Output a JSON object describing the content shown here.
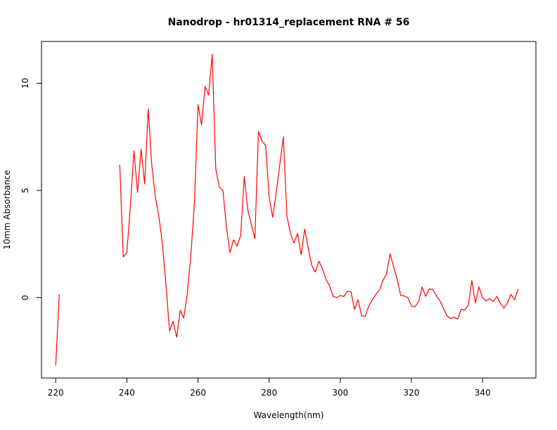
{
  "chart_data": {
    "type": "line",
    "title": "Nanodrop - hr01314_replacement RNA # 56",
    "xlabel": "Wavelength(nm)",
    "ylabel": "10mm Absorbance",
    "xlim": [
      216,
      355
    ],
    "ylim": [
      -3.75,
      11.95
    ],
    "xticks": [
      220,
      240,
      260,
      280,
      300,
      320,
      340
    ],
    "yticks": [
      0,
      5,
      10
    ],
    "grid": false,
    "legend": "none",
    "series": [
      {
        "color": "#ff0000",
        "segments": [
          [
            [
              220,
              -3.15
            ],
            [
              221,
              0.15
            ]
          ],
          [
            [
              238,
              6.2
            ],
            [
              239,
              1.9
            ],
            [
              240,
              2.1
            ],
            [
              241,
              4.3
            ],
            [
              242,
              6.85
            ],
            [
              243,
              4.9
            ],
            [
              244,
              6.92
            ],
            [
              245,
              5.3
            ],
            [
              246,
              8.8
            ],
            [
              247,
              6.2
            ],
            [
              248,
              4.7
            ],
            [
              249,
              3.8
            ],
            [
              250,
              2.5
            ],
            [
              251,
              0.6
            ],
            [
              252,
              -1.55
            ],
            [
              253,
              -1.1
            ],
            [
              254,
              -1.85
            ],
            [
              255,
              -0.6
            ],
            [
              256,
              -0.95
            ],
            [
              257,
              0.2
            ],
            [
              258,
              2.0
            ],
            [
              259,
              4.4
            ],
            [
              260,
              9.0
            ],
            [
              261,
              8.05
            ],
            [
              262,
              9.85
            ],
            [
              263,
              9.45
            ],
            [
              264,
              11.35
            ],
            [
              265,
              6.0
            ],
            [
              266,
              5.15
            ],
            [
              267,
              5.0
            ],
            [
              268,
              3.3
            ],
            [
              269,
              2.1
            ],
            [
              270,
              2.7
            ],
            [
              271,
              2.4
            ],
            [
              272,
              2.9
            ],
            [
              273,
              5.65
            ],
            [
              274,
              4.1
            ],
            [
              275,
              3.4
            ],
            [
              276,
              2.75
            ],
            [
              277,
              7.75
            ],
            [
              278,
              7.3
            ],
            [
              279,
              7.1
            ],
            [
              280,
              4.7
            ],
            [
              281,
              3.75
            ],
            [
              282,
              4.9
            ],
            [
              283,
              6.2
            ],
            [
              284,
              7.5
            ],
            [
              285,
              3.8
            ],
            [
              286,
              3.0
            ],
            [
              287,
              2.55
            ],
            [
              288,
              3.0
            ],
            [
              289,
              2.0
            ],
            [
              290,
              3.2
            ],
            [
              291,
              2.3
            ],
            [
              292,
              1.5
            ],
            [
              293,
              1.2
            ],
            [
              294,
              1.7
            ],
            [
              295,
              1.35
            ],
            [
              296,
              0.85
            ],
            [
              297,
              0.55
            ],
            [
              298,
              0.05
            ],
            [
              299,
              0.0
            ],
            [
              300,
              0.1
            ],
            [
              301,
              0.05
            ],
            [
              302,
              0.3
            ],
            [
              303,
              0.28
            ],
            [
              304,
              -0.55
            ],
            [
              305,
              -0.1
            ],
            [
              306,
              -0.85
            ],
            [
              307,
              -0.88
            ],
            [
              308,
              -0.4
            ],
            [
              309,
              -0.1
            ],
            [
              310,
              0.15
            ],
            [
              311,
              0.35
            ],
            [
              312,
              0.8
            ],
            [
              313,
              1.1
            ],
            [
              314,
              2.05
            ],
            [
              315,
              1.45
            ],
            [
              316,
              0.85
            ],
            [
              317,
              0.1
            ],
            [
              318,
              0.08
            ],
            [
              319,
              0.0
            ],
            [
              320,
              -0.4
            ],
            [
              321,
              -0.42
            ],
            [
              322,
              -0.2
            ],
            [
              323,
              0.5
            ],
            [
              324,
              0.05
            ],
            [
              325,
              0.4
            ],
            [
              326,
              0.38
            ],
            [
              327,
              0.1
            ],
            [
              328,
              -0.15
            ],
            [
              329,
              -0.5
            ],
            [
              330,
              -0.85
            ],
            [
              331,
              -0.98
            ],
            [
              332,
              -0.92
            ],
            [
              333,
              -1.0
            ],
            [
              334,
              -0.55
            ],
            [
              335,
              -0.58
            ],
            [
              336,
              -0.35
            ],
            [
              337,
              0.8
            ],
            [
              338,
              -0.25
            ],
            [
              339,
              0.5
            ],
            [
              340,
              0.0
            ],
            [
              341,
              -0.15
            ],
            [
              342,
              -0.05
            ],
            [
              343,
              -0.18
            ],
            [
              344,
              0.05
            ],
            [
              345,
              -0.25
            ],
            [
              346,
              -0.5
            ],
            [
              347,
              -0.25
            ],
            [
              348,
              0.15
            ],
            [
              349,
              -0.1
            ],
            [
              350,
              0.4
            ]
          ]
        ]
      }
    ]
  }
}
